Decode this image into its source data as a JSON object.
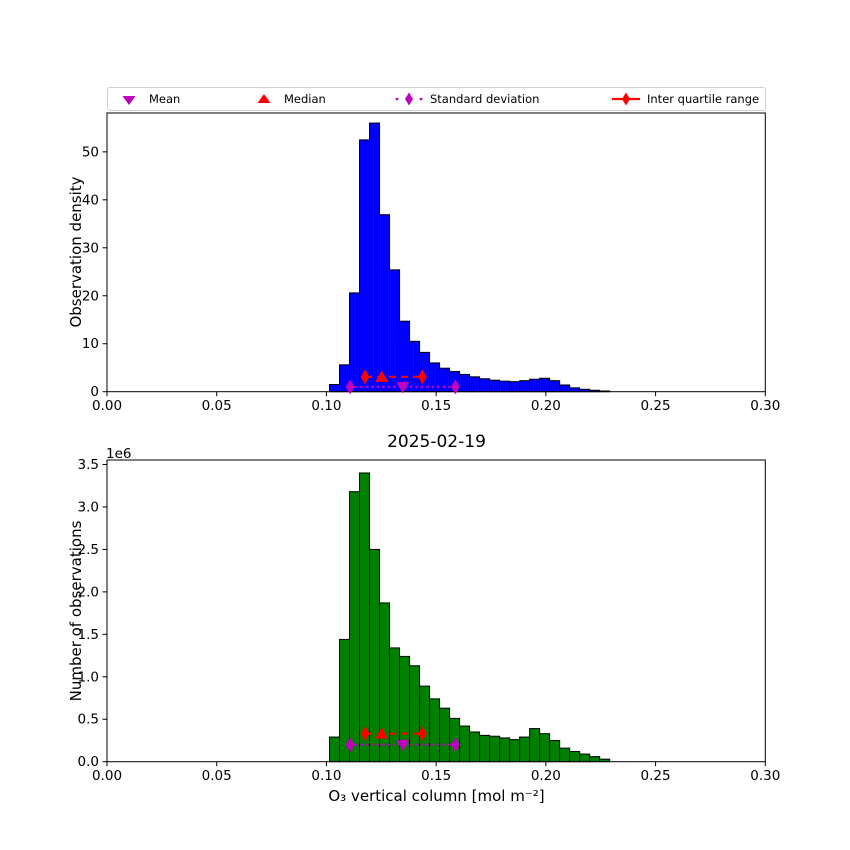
{
  "title": "2025-02-19",
  "xlabel": "O₃ vertical column [mol m⁻²]",
  "colors": {
    "top_bar": "#0000ff",
    "bottom_bar": "#008000",
    "bar_edge": "#000000",
    "mean_std": "#bf00bf",
    "median_iqr": "#ff0000",
    "axis": "#000000",
    "legend_border": "#cfcfcf"
  },
  "legend": {
    "items": [
      {
        "label": "Mean",
        "marker": "triangle-down-icon",
        "color": "#bf00bf"
      },
      {
        "label": "Median",
        "marker": "triangle-up-icon",
        "color": "#ff0000"
      },
      {
        "label": "Standard deviation",
        "marker": "dotted-line-diamond-icon",
        "color": "#bf00bf"
      },
      {
        "label": "Inter quartile range",
        "marker": "dashed-line-diamond-icon",
        "color": "#ff0000"
      }
    ]
  },
  "stats": {
    "mean": 0.1348,
    "median": 0.1252,
    "q1": 0.1176,
    "q3": 0.1437,
    "std_low": 0.1108,
    "std_high": 0.1588
  },
  "chart_data": [
    {
      "type": "bar",
      "id": "top-histogram",
      "ylabel": "Observation density",
      "bar_color": "#0000ff",
      "bin_start": 0.1014,
      "bin_width": 0.00456,
      "values": [
        1.5,
        5.6,
        20.6,
        52.5,
        56.0,
        36.9,
        25.4,
        14.7,
        10.5,
        8.2,
        6.0,
        4.9,
        4.2,
        3.6,
        3.1,
        2.7,
        2.4,
        2.2,
        2.1,
        2.3,
        2.6,
        2.8,
        2.3,
        1.4,
        0.8,
        0.5,
        0.3,
        0.15
      ],
      "xlim": [
        0.0,
        0.3
      ],
      "ylim": [
        0,
        58.1
      ],
      "xticks": {
        "values": [
          0.0,
          0.05,
          0.1,
          0.15,
          0.2,
          0.25,
          0.3
        ],
        "labels": [
          "0.00",
          "0.05",
          "0.10",
          "0.15",
          "0.20",
          "0.25",
          "0.30"
        ]
      },
      "yticks": {
        "values": [
          0,
          10,
          20,
          30,
          40,
          50
        ],
        "labels": [
          "0",
          "10",
          "20",
          "30",
          "40",
          "50"
        ]
      },
      "markers": {
        "iqr_line_y": 3.1,
        "std_line_y": 1.0
      }
    },
    {
      "type": "bar",
      "id": "bottom-histogram",
      "ylabel": "Number of observations",
      "offset_label": "1e6",
      "bar_color": "#008000",
      "bin_start": 0.1014,
      "bin_width": 0.00456,
      "values_unit": "1e6",
      "values": [
        0.29,
        1.44,
        3.18,
        3.4,
        2.5,
        1.87,
        1.34,
        1.24,
        1.13,
        0.89,
        0.74,
        0.63,
        0.51,
        0.42,
        0.35,
        0.31,
        0.3,
        0.28,
        0.26,
        0.29,
        0.39,
        0.33,
        0.25,
        0.16,
        0.12,
        0.09,
        0.06,
        0.03
      ],
      "xlim": [
        0.0,
        0.3
      ],
      "ylim": [
        0,
        3.553
      ],
      "xticks": {
        "values": [
          0.0,
          0.05,
          0.1,
          0.15,
          0.2,
          0.25,
          0.3
        ],
        "labels": [
          "0.00",
          "0.05",
          "0.10",
          "0.15",
          "0.20",
          "0.25",
          "0.30"
        ]
      },
      "yticks": {
        "values": [
          0.0,
          0.5,
          1.0,
          1.5,
          2.0,
          2.5,
          3.0,
          3.5
        ],
        "labels": [
          "0.0",
          "0.5",
          "1.0",
          "1.5",
          "2.0",
          "2.5",
          "3.0",
          "3.5"
        ]
      },
      "markers": {
        "iqr_line_y": 0.33,
        "std_line_y": 0.2
      }
    }
  ]
}
